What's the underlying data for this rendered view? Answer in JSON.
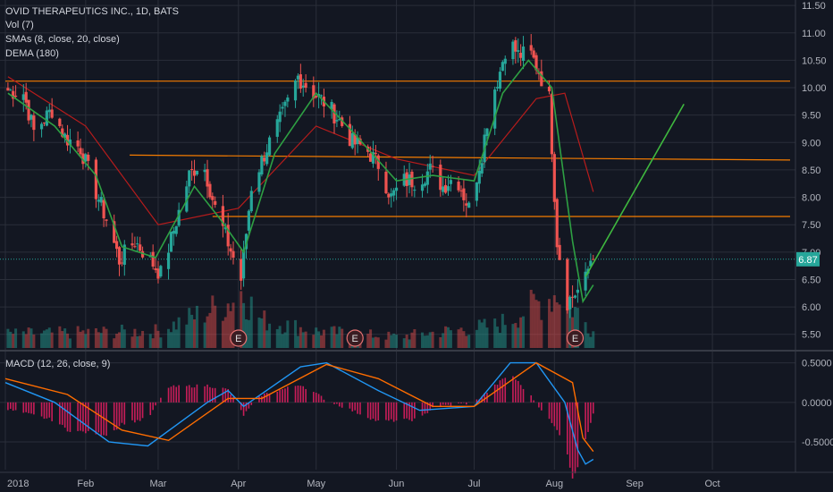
{
  "header": {
    "symbol_line": "OVID THERAPEUTICS INC., 1D, BATS",
    "vol_label": "Vol (7)",
    "sma_label": "SMAs (8, close, 20, close)",
    "dema_label": "DEMA (180)",
    "macd_label": "MACD (12, 26, close, 9)"
  },
  "colors": {
    "background": "#131722",
    "grid": "#2a2e39",
    "up": "#26a69a",
    "down": "#ef5350",
    "sma_fast": "#2ea043",
    "sma_slow": "#b71c1c",
    "level_line": "#f57c00",
    "macd_line": "#2196f3",
    "signal_line": "#ff6d00",
    "hist_pos": "#e91e63",
    "price_badge": "#26a69a",
    "projection": "#3fb83f"
  },
  "chart_data": [
    {
      "type": "candlestick",
      "title": "OVID THERAPEUTICS INC., 1D, BATS",
      "x_ticks": [
        "2018",
        "Feb",
        "Mar",
        "Apr",
        "May",
        "Jun",
        "Jul",
        "Aug",
        "Sep",
        "Oct"
      ],
      "x_tick_dates": [
        "2018-01-01",
        "2018-02-01",
        "2018-03-01",
        "2018-04-01",
        "2018-05-01",
        "2018-06-01",
        "2018-07-01",
        "2018-08-01",
        "2018-09-01",
        "2018-10-01"
      ],
      "y_ticks": [
        "11.50",
        "11.00",
        "10.50",
        "10.00",
        "9.50",
        "9.00",
        "8.50",
        "8.00",
        "7.50",
        "7.00",
        "6.50",
        "6.00",
        "5.50"
      ],
      "ylim": [
        5.3,
        11.6
      ],
      "last_price": "6.87",
      "earnings_markers": [
        {
          "label": "E",
          "date": "2018-04-01"
        },
        {
          "label": "E",
          "date": "2018-05-16"
        },
        {
          "label": "E",
          "date": "2018-08-09"
        }
      ],
      "horizontal_levels": [
        {
          "y": 10.12,
          "from": "2018-01-01",
          "to": "2018-10-31"
        },
        {
          "y": 8.77,
          "from": "2018-02-18",
          "to": "2018-10-31",
          "y_end": 8.68
        },
        {
          "y": 7.65,
          "from": "2018-03-22",
          "to": "2018-10-31"
        }
      ],
      "projection": [
        {
          "date": "2018-08-13",
          "y": 6.55
        },
        {
          "date": "2018-09-20",
          "y": 9.7
        }
      ],
      "price_anchors": [
        {
          "date": "2018-01-02",
          "y": 9.95
        },
        {
          "date": "2018-01-08",
          "y": 9.9
        },
        {
          "date": "2018-01-12",
          "y": 9.2
        },
        {
          "date": "2018-01-19",
          "y": 9.6
        },
        {
          "date": "2018-01-24",
          "y": 9.1
        },
        {
          "date": "2018-01-30",
          "y": 8.9
        },
        {
          "date": "2018-02-05",
          "y": 8.1
        },
        {
          "date": "2018-02-09",
          "y": 7.6
        },
        {
          "date": "2018-02-14",
          "y": 6.85
        },
        {
          "date": "2018-02-20",
          "y": 7.2
        },
        {
          "date": "2018-02-26",
          "y": 6.85
        },
        {
          "date": "2018-03-02",
          "y": 6.6
        },
        {
          "date": "2018-03-07",
          "y": 7.4
        },
        {
          "date": "2018-03-13",
          "y": 8.4
        },
        {
          "date": "2018-03-18",
          "y": 8.7
        },
        {
          "date": "2018-03-23",
          "y": 7.8
        },
        {
          "date": "2018-03-27",
          "y": 7.3
        },
        {
          "date": "2018-04-02",
          "y": 6.5
        },
        {
          "date": "2018-04-06",
          "y": 8.2
        },
        {
          "date": "2018-04-12",
          "y": 8.9
        },
        {
          "date": "2018-04-18",
          "y": 9.5
        },
        {
          "date": "2018-04-24",
          "y": 10.2
        },
        {
          "date": "2018-04-30",
          "y": 9.9
        },
        {
          "date": "2018-05-05",
          "y": 9.7
        },
        {
          "date": "2018-05-10",
          "y": 9.4
        },
        {
          "date": "2018-05-15",
          "y": 9.0
        },
        {
          "date": "2018-05-20",
          "y": 8.9
        },
        {
          "date": "2018-05-25",
          "y": 8.6
        },
        {
          "date": "2018-05-30",
          "y": 8.0
        },
        {
          "date": "2018-06-04",
          "y": 8.3
        },
        {
          "date": "2018-06-09",
          "y": 8.3
        },
        {
          "date": "2018-06-14",
          "y": 8.5
        },
        {
          "date": "2018-06-19",
          "y": 8.2
        },
        {
          "date": "2018-06-24",
          "y": 8.4
        },
        {
          "date": "2018-06-29",
          "y": 7.8
        },
        {
          "date": "2018-07-04",
          "y": 8.8
        },
        {
          "date": "2018-07-07",
          "y": 9.7
        },
        {
          "date": "2018-07-11",
          "y": 10.3
        },
        {
          "date": "2018-07-14",
          "y": 10.9
        },
        {
          "date": "2018-07-18",
          "y": 10.6
        },
        {
          "date": "2018-07-23",
          "y": 10.6
        },
        {
          "date": "2018-07-26",
          "y": 10.3
        },
        {
          "date": "2018-07-30",
          "y": 9.8
        },
        {
          "date": "2018-08-02",
          "y": 7.2
        },
        {
          "date": "2018-08-06",
          "y": 6.1
        },
        {
          "date": "2018-08-10",
          "y": 6.3
        },
        {
          "date": "2018-08-13",
          "y": 6.5
        },
        {
          "date": "2018-08-15",
          "y": 6.87
        }
      ],
      "sma_fast_anchors": [
        {
          "date": "2018-01-02",
          "y": 9.9
        },
        {
          "date": "2018-01-20",
          "y": 9.3
        },
        {
          "date": "2018-02-05",
          "y": 8.4
        },
        {
          "date": "2018-02-15",
          "y": 7.1
        },
        {
          "date": "2018-02-28",
          "y": 6.9
        },
        {
          "date": "2018-03-15",
          "y": 8.2
        },
        {
          "date": "2018-03-25",
          "y": 7.6
        },
        {
          "date": "2018-04-03",
          "y": 7.0
        },
        {
          "date": "2018-04-15",
          "y": 8.8
        },
        {
          "date": "2018-05-01",
          "y": 9.9
        },
        {
          "date": "2018-05-15",
          "y": 9.2
        },
        {
          "date": "2018-06-01",
          "y": 8.3
        },
        {
          "date": "2018-06-15",
          "y": 8.4
        },
        {
          "date": "2018-07-01",
          "y": 8.3
        },
        {
          "date": "2018-07-12",
          "y": 9.9
        },
        {
          "date": "2018-07-22",
          "y": 10.5
        },
        {
          "date": "2018-07-31",
          "y": 10.0
        },
        {
          "date": "2018-08-08",
          "y": 7.2
        },
        {
          "date": "2018-08-12",
          "y": 6.1
        },
        {
          "date": "2018-08-16",
          "y": 6.4
        }
      ],
      "sma_slow_anchors": [
        {
          "date": "2018-01-02",
          "y": 10.2
        },
        {
          "date": "2018-02-01",
          "y": 9.3
        },
        {
          "date": "2018-03-01",
          "y": 7.5
        },
        {
          "date": "2018-04-01",
          "y": 7.8
        },
        {
          "date": "2018-05-01",
          "y": 9.3
        },
        {
          "date": "2018-06-01",
          "y": 8.7
        },
        {
          "date": "2018-07-01",
          "y": 8.4
        },
        {
          "date": "2018-07-25",
          "y": 9.8
        },
        {
          "date": "2018-08-05",
          "y": 9.9
        },
        {
          "date": "2018-08-16",
          "y": 8.1
        }
      ],
      "volume_anchors": [
        {
          "date": "2018-01-02",
          "v": 0.25
        },
        {
          "date": "2018-03-01",
          "v": 0.3
        },
        {
          "date": "2018-03-28",
          "v": 0.8
        },
        {
          "date": "2018-04-02",
          "v": 1.0
        },
        {
          "date": "2018-04-10",
          "v": 0.5
        },
        {
          "date": "2018-05-01",
          "v": 0.3
        },
        {
          "date": "2018-06-01",
          "v": 0.2
        },
        {
          "date": "2018-07-10",
          "v": 0.4
        },
        {
          "date": "2018-08-03",
          "v": 1.0
        },
        {
          "date": "2018-08-16",
          "v": 0.3
        }
      ]
    },
    {
      "type": "line",
      "title": "MACD (12, 26, close, 9)",
      "y_ticks": [
        "0.5000",
        "0.0000",
        "-0.5000"
      ],
      "ylim": [
        -0.85,
        0.62
      ],
      "series": [
        {
          "name": "MACD",
          "points": [
            {
              "date": "2018-01-01",
              "y": 0.25
            },
            {
              "date": "2018-01-20",
              "y": 0.0
            },
            {
              "date": "2018-02-10",
              "y": -0.5
            },
            {
              "date": "2018-02-25",
              "y": -0.55
            },
            {
              "date": "2018-03-20",
              "y": 0.0
            },
            {
              "date": "2018-03-28",
              "y": 0.15
            },
            {
              "date": "2018-04-03",
              "y": -0.05
            },
            {
              "date": "2018-04-25",
              "y": 0.45
            },
            {
              "date": "2018-05-05",
              "y": 0.5
            },
            {
              "date": "2018-05-25",
              "y": 0.15
            },
            {
              "date": "2018-06-10",
              "y": -0.1
            },
            {
              "date": "2018-07-01",
              "y": -0.05
            },
            {
              "date": "2018-07-15",
              "y": 0.5
            },
            {
              "date": "2018-07-25",
              "y": 0.5
            },
            {
              "date": "2018-08-05",
              "y": 0.0
            },
            {
              "date": "2018-08-10",
              "y": -0.6
            },
            {
              "date": "2018-08-13",
              "y": -0.78
            },
            {
              "date": "2018-08-16",
              "y": -0.72
            }
          ]
        },
        {
          "name": "Signal",
          "points": [
            {
              "date": "2018-01-01",
              "y": 0.3
            },
            {
              "date": "2018-01-25",
              "y": 0.1
            },
            {
              "date": "2018-02-15",
              "y": -0.35
            },
            {
              "date": "2018-03-05",
              "y": -0.48
            },
            {
              "date": "2018-03-28",
              "y": 0.05
            },
            {
              "date": "2018-04-10",
              "y": 0.05
            },
            {
              "date": "2018-05-05",
              "y": 0.48
            },
            {
              "date": "2018-05-25",
              "y": 0.3
            },
            {
              "date": "2018-06-15",
              "y": -0.05
            },
            {
              "date": "2018-07-01",
              "y": -0.05
            },
            {
              "date": "2018-07-25",
              "y": 0.5
            },
            {
              "date": "2018-08-08",
              "y": 0.25
            },
            {
              "date": "2018-08-12",
              "y": -0.45
            },
            {
              "date": "2018-08-16",
              "y": -0.62
            }
          ]
        }
      ]
    }
  ]
}
